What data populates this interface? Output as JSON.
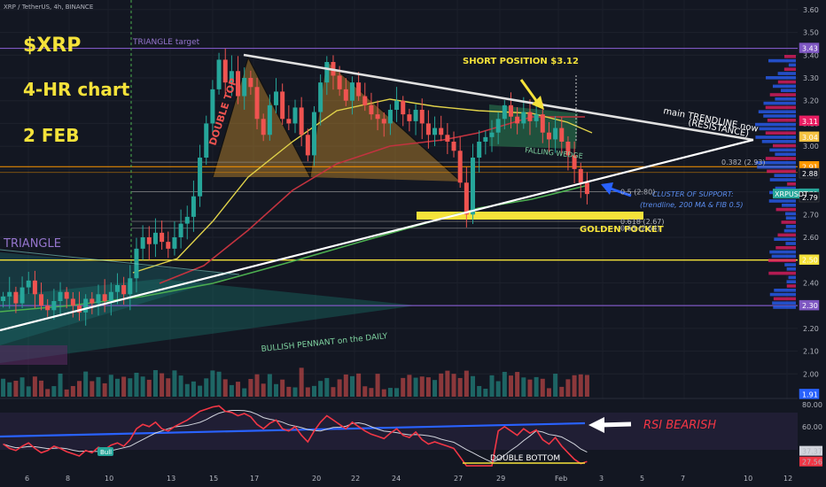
{
  "header": {
    "symbol_line": "XRP / TetherUS, 4h, BINANCE"
  },
  "overlay": {
    "ticker": "$XRP",
    "timeframe": "4-HR chart",
    "date": "2 FEB"
  },
  "annotations": {
    "triangle_target": "TRIANGLE target",
    "double_top": "DOUBLE TOP",
    "triangle": "TRIANGLE",
    "short_position": "SHORT POSITION $3.12",
    "trendline_line1": "main TRENDLINE now",
    "trendline_line2": "(RESISTANCE)",
    "falling_wedge": "FALLING WEDGE",
    "cluster_line1": "CLUSTER OF SUPPORT:",
    "cluster_line2": "(trendline, 200 MA & FIB 0.5)",
    "golden_pocket": "GOLDEN POCKET",
    "bullish_pennant": "BULLISH PENNANT on the DAILY",
    "rsi_bearish": "RSI BEARISH",
    "double_bottom": "DOUBLE BOTTOM",
    "bull_tag": "Bull"
  },
  "colors": {
    "background": "#131722",
    "up": "#26a69a",
    "down": "#ef5350",
    "ma_fast": "#e0d24a",
    "ma_mid": "#c2333f",
    "ma_slow": "#4caf50",
    "trendline": "#ffffff",
    "rsi": "#f23645",
    "rsi_ma": "#d1d4dc",
    "rsi_trend": "#2962ff",
    "annotation_yellow": "#f5e23a",
    "annotation_blue": "#5b8def"
  },
  "chart_data": {
    "type": "candlestick",
    "y_ticks": [
      "3.60",
      "3.50",
      "3.40",
      "3.30",
      "3.20",
      "3.10",
      "3.00",
      "2.90",
      "2.80",
      "2.70",
      "2.60",
      "2.50",
      "2.40",
      "2.30",
      "2.20",
      "2.10",
      "2.00"
    ],
    "ylim": [
      1.9,
      3.65
    ],
    "x_ticks": [
      "6",
      "8",
      "10",
      "13",
      "15",
      "17",
      "20",
      "22",
      "24",
      "27",
      "29",
      "Feb",
      "3",
      "5",
      "7",
      "10",
      "12"
    ],
    "price_badges": [
      {
        "label": "3.43",
        "value": 3.43,
        "color": "#7e57c2"
      },
      {
        "label": "3.11",
        "value": 3.11,
        "color": "#e91e63"
      },
      {
        "label": "3.04",
        "value": 3.04,
        "color": "#f5c242"
      },
      {
        "label": "2.91",
        "value": 2.91,
        "color": "#ff9800"
      },
      {
        "label": "2.88",
        "value": 2.88,
        "color": "#131722"
      },
      {
        "label": "2.79",
        "value": 2.79,
        "color": "#26a69a"
      },
      {
        "label": "2.79",
        "value": 2.775,
        "color": "#131722"
      },
      {
        "label": "2.50",
        "value": 2.5,
        "color": "#f5e23a"
      },
      {
        "label": "2.30",
        "value": 2.3,
        "color": "#7e57c2"
      },
      {
        "label": "1.91",
        "value": 1.91,
        "color": "#2962ff"
      }
    ],
    "symbol_badge": "XRPUSDT",
    "fib_levels": [
      {
        "label": "0.382 (2.93)",
        "value": 2.93
      },
      {
        "label": "0.5 (2.80)",
        "value": 2.8
      },
      {
        "label": "0.618 (2.67)",
        "value": 2.67
      },
      {
        "label": "0.65 (2.64)",
        "value": 2.64
      }
    ],
    "horizontal_levels": {
      "triangle_target": 3.43,
      "resistance_band": 2.91,
      "support_yellow": 2.5,
      "lower": 2.3
    },
    "close_series": [
      2.34,
      2.36,
      2.31,
      2.38,
      2.41,
      2.35,
      2.3,
      2.28,
      2.32,
      2.36,
      2.33,
      2.3,
      2.27,
      2.33,
      2.31,
      2.35,
      2.32,
      2.36,
      2.39,
      2.35,
      2.42,
      2.55,
      2.6,
      2.57,
      2.62,
      2.58,
      2.55,
      2.6,
      2.66,
      2.69,
      2.78,
      2.95,
      3.1,
      3.25,
      3.38,
      3.28,
      3.33,
      3.22,
      3.3,
      3.26,
      3.12,
      3.05,
      3.18,
      3.24,
      3.12,
      3.1,
      3.17,
      3.05,
      2.96,
      3.15,
      3.28,
      3.37,
      3.31,
      3.25,
      3.2,
      3.28,
      3.22,
      3.18,
      3.14,
      3.12,
      3.1,
      3.16,
      3.2,
      3.14,
      3.11,
      3.16,
      3.1,
      3.05,
      3.08,
      3.05,
      3.02,
      2.98,
      2.84,
      2.7,
      2.95,
      3.02,
      3.04,
      3.06,
      3.12,
      3.18,
      3.13,
      3.1,
      3.15,
      3.11,
      3.14,
      3.06,
      3.03,
      3.08,
      3.02,
      2.96,
      2.9,
      2.84,
      2.79
    ],
    "rsi": {
      "y_ticks": [
        "80.00",
        "60.00",
        "37.37",
        "27.56"
      ],
      "ylim": [
        20,
        85
      ],
      "last_values": [
        37.37,
        27.56
      ],
      "series": [
        44,
        40,
        38,
        42,
        45,
        40,
        36,
        38,
        42,
        40,
        37,
        35,
        33,
        38,
        36,
        41,
        39,
        43,
        45,
        42,
        48,
        58,
        62,
        60,
        64,
        58,
        56,
        60,
        63,
        66,
        70,
        74,
        76,
        78,
        79,
        74,
        73,
        70,
        72,
        69,
        62,
        58,
        63,
        66,
        58,
        56,
        60,
        52,
        46,
        56,
        64,
        70,
        66,
        62,
        58,
        64,
        60,
        56,
        53,
        51,
        49,
        54,
        58,
        52,
        50,
        55,
        48,
        44,
        46,
        44,
        42,
        40,
        32,
        24,
        24,
        24,
        24,
        24,
        56,
        60,
        56,
        52,
        58,
        54,
        57,
        48,
        44,
        50,
        42,
        36,
        30,
        26,
        28
      ]
    }
  }
}
